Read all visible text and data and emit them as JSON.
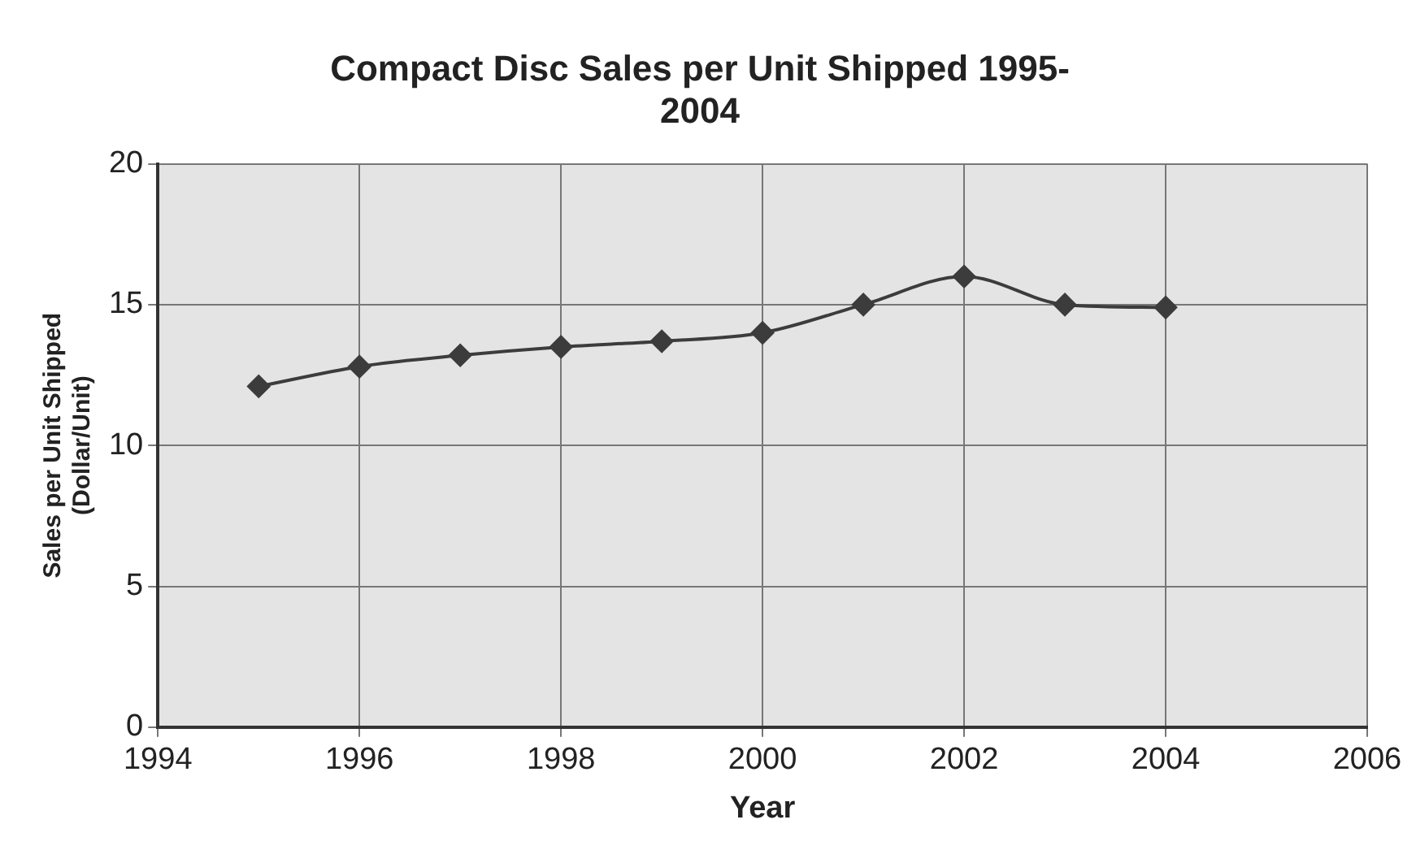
{
  "chart_data": {
    "type": "line",
    "title": "Compact Disc Sales per Unit Shipped 1995-\n2004",
    "xlabel": "Year",
    "ylabel": "Sales per Unit Shipped\n(Dollar/Unit)",
    "x": [
      1995,
      1996,
      1997,
      1998,
      1999,
      2000,
      2001,
      2002,
      2003,
      2004
    ],
    "series": [
      {
        "color": "#3c3c3c",
        "values": [
          12.1,
          12.8,
          13.2,
          13.5,
          13.7,
          14.0,
          15.0,
          16.0,
          15.0,
          14.9
        ]
      }
    ],
    "xlim": [
      1994,
      2006
    ],
    "xticks": [
      1994,
      1996,
      1998,
      2000,
      2002,
      2004,
      2006
    ],
    "ylim": [
      0,
      20
    ],
    "yticks": [
      0,
      5,
      10,
      15,
      20
    ],
    "grid": true,
    "legend": false,
    "marker": "diamond",
    "line_style": "solid"
  }
}
